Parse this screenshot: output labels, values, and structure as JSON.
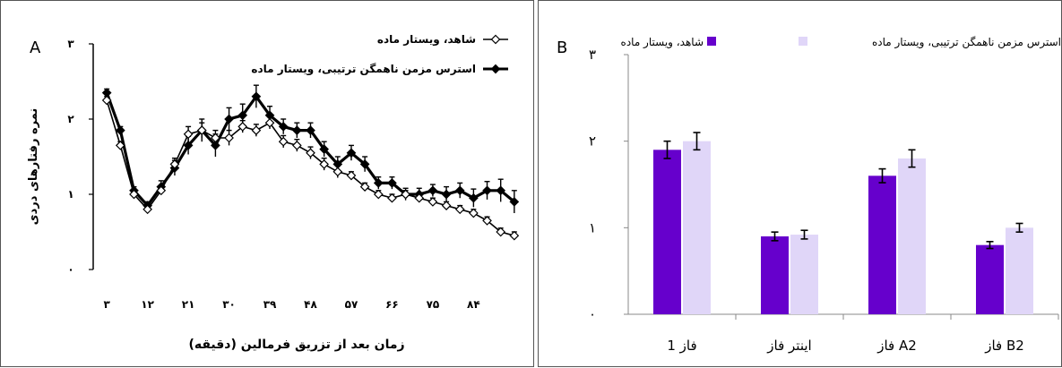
{
  "chart_data": [
    {
      "panel_letter": "A",
      "type": "line",
      "xlabel": "زمان بعد از تزریق فرمالین (دقیقه)",
      "ylabel": "نمره رفتارهای دردی",
      "ylim": [
        0,
        3
      ],
      "xlim": [
        0,
        96
      ],
      "y_ticks": [
        "۰",
        "۱",
        "۲",
        "۳"
      ],
      "x_tick_values": [
        3,
        12,
        21,
        30,
        39,
        48,
        57,
        66,
        75,
        84
      ],
      "x_tick_labels": [
        "۳",
        "۱۲",
        "۲۱",
        "۳۰",
        "۳۹",
        "۴۸",
        "۵۷",
        "۶۶",
        "۷۵",
        "۸۴"
      ],
      "legend_position": "top-right",
      "x": [
        3,
        6,
        9,
        12,
        15,
        18,
        21,
        24,
        27,
        30,
        33,
        36,
        39,
        42,
        45,
        48,
        51,
        54,
        57,
        60,
        63,
        66,
        69,
        72,
        75,
        78,
        81,
        84,
        87,
        90,
        93
      ],
      "series": [
        {
          "name": "شاهد، ویستار ماده",
          "marker": "open-diamond",
          "color": "#000000",
          "values": [
            2.25,
            1.65,
            1.0,
            0.8,
            1.05,
            1.4,
            1.8,
            1.85,
            1.75,
            1.75,
            1.9,
            1.85,
            1.95,
            1.7,
            1.65,
            1.55,
            1.4,
            1.3,
            1.25,
            1.1,
            1.0,
            0.95,
            1.0,
            0.95,
            0.9,
            0.85,
            0.8,
            0.75,
            0.65,
            0.5,
            0.45
          ],
          "errors": [
            0.05,
            0.05,
            0.05,
            0.05,
            0.05,
            0.08,
            0.1,
            0.1,
            0.1,
            0.1,
            0.08,
            0.08,
            0.08,
            0.08,
            0.08,
            0.08,
            0.08,
            0.08,
            0.05,
            0.05,
            0.05,
            0.05,
            0.05,
            0.05,
            0.05,
            0.05,
            0.05,
            0.05,
            0.05,
            0.05,
            0.05
          ]
        },
        {
          "name": "استرس مزمن ناهمگن ترتیبی، ویستار ماده",
          "marker": "filled-diamond",
          "color": "#000000",
          "values": [
            2.35,
            1.85,
            1.05,
            0.85,
            1.1,
            1.35,
            1.65,
            1.85,
            1.65,
            2.0,
            2.05,
            2.3,
            2.05,
            1.9,
            1.85,
            1.85,
            1.6,
            1.4,
            1.55,
            1.4,
            1.15,
            1.15,
            1.0,
            1.0,
            1.05,
            1.0,
            1.05,
            0.95,
            1.05,
            1.05,
            0.9
          ],
          "errors": [
            0.05,
            0.05,
            0.05,
            0.05,
            0.08,
            0.1,
            0.12,
            0.15,
            0.15,
            0.15,
            0.15,
            0.15,
            0.12,
            0.1,
            0.1,
            0.1,
            0.1,
            0.1,
            0.1,
            0.1,
            0.08,
            0.08,
            0.08,
            0.08,
            0.08,
            0.1,
            0.1,
            0.12,
            0.12,
            0.15,
            0.15
          ]
        }
      ]
    },
    {
      "panel_letter": "B",
      "type": "bar",
      "ylim": [
        0,
        3
      ],
      "y_ticks": [
        "۰",
        "۱",
        "۲",
        "۳"
      ],
      "categories": [
        "فاز 1",
        "اینتر فاز",
        "فاز A2",
        "فاز B2"
      ],
      "legend_position": "top",
      "series": [
        {
          "name": "استرس مزمن ناهمگن ترتیبی، ویستار ماده",
          "color": "#6600CC",
          "values": [
            1.9,
            0.9,
            1.6,
            0.8
          ],
          "errors": [
            0.1,
            0.05,
            0.08,
            0.04
          ]
        },
        {
          "name": "شاهد، ویستار ماده",
          "color": "#E0D6F8",
          "values": [
            2.0,
            0.92,
            1.8,
            1.0
          ],
          "errors": [
            0.1,
            0.05,
            0.1,
            0.05
          ]
        }
      ]
    }
  ]
}
